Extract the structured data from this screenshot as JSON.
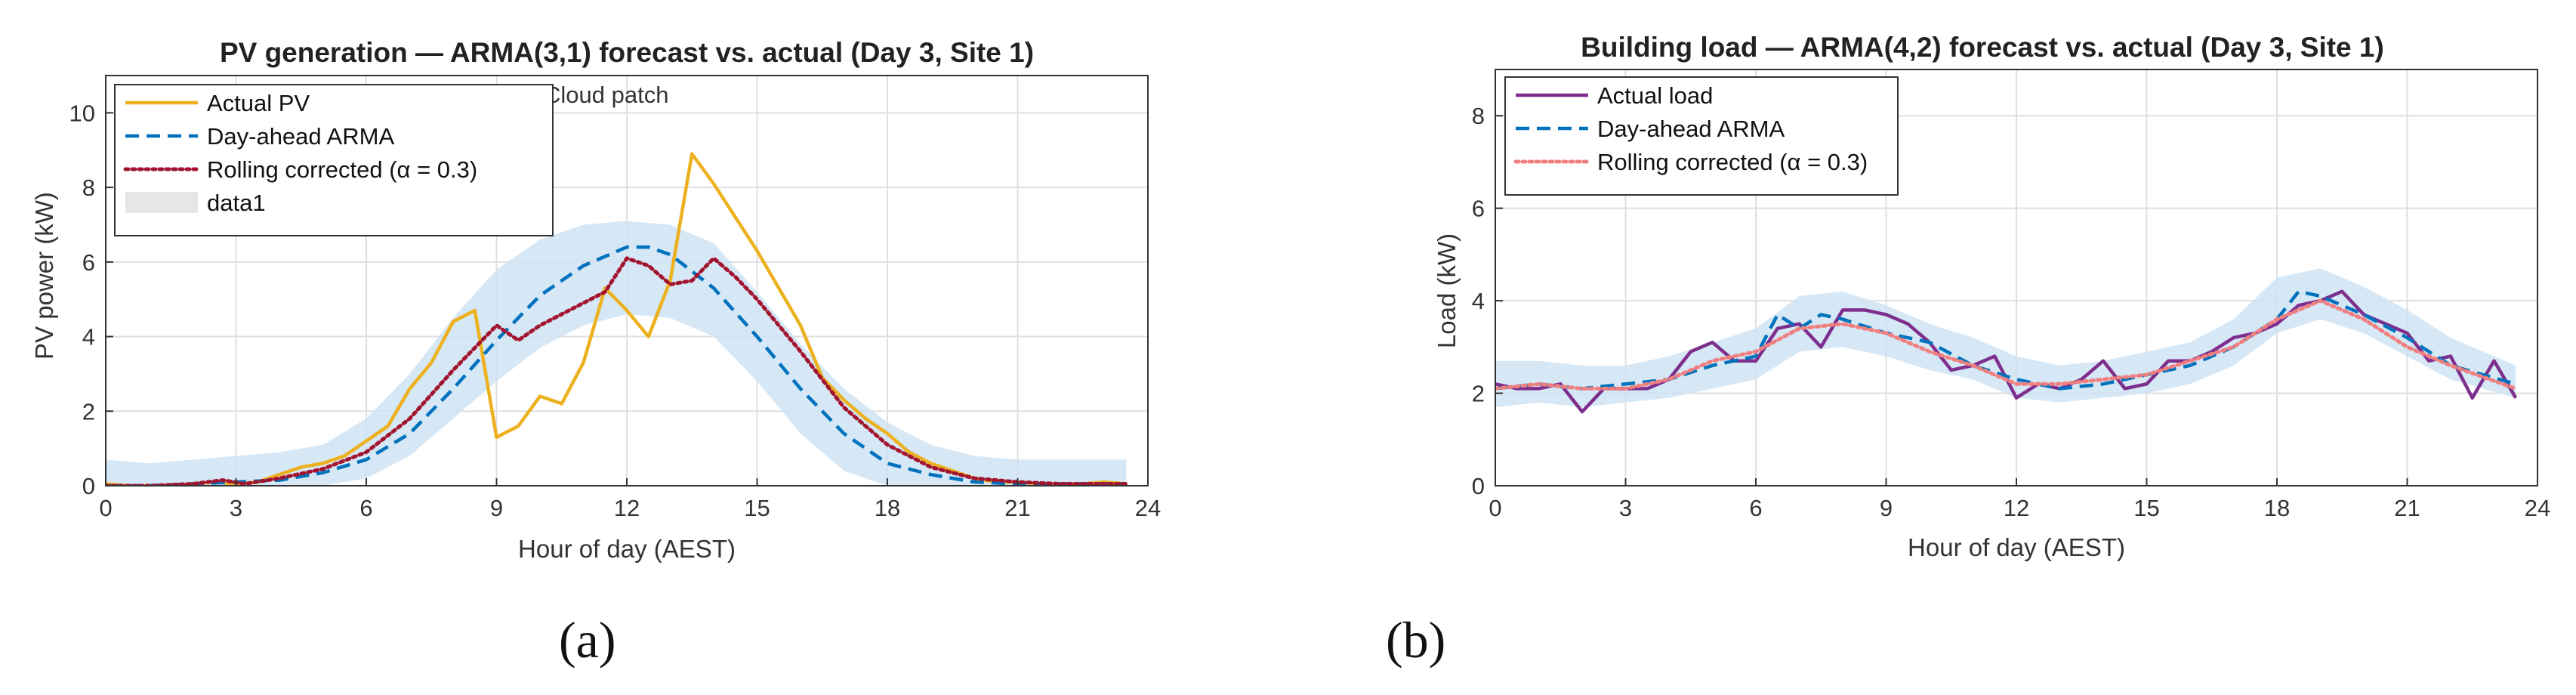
{
  "chart_data": [
    {
      "type": "line",
      "title": "PV generation — ARMA(3,1) forecast vs. actual (Day 3, Site 1)",
      "xlabel": "Hour of day (AEST)",
      "ylabel": "PV power (kW)",
      "xlim": [
        0,
        24
      ],
      "ylim": [
        0,
        11
      ],
      "xticks": [
        0,
        3,
        6,
        9,
        12,
        15,
        18,
        21,
        24
      ],
      "yticks": [
        0,
        2,
        4,
        6,
        8,
        10
      ],
      "grid": true,
      "legend_position": "top-left",
      "annotation": "Cloud patch",
      "band": {
        "name": "data1",
        "x": [
          0,
          1,
          2,
          3,
          4,
          5,
          6,
          7,
          8,
          9,
          10,
          11,
          12,
          13,
          14,
          15,
          16,
          17,
          18,
          19,
          20,
          21,
          22,
          23.5
        ],
        "lower": [
          0,
          0,
          0,
          0,
          0,
          0,
          0.2,
          0.8,
          1.8,
          2.8,
          3.7,
          4.3,
          4.6,
          4.5,
          4.0,
          2.8,
          1.4,
          0.4,
          0,
          0,
          0,
          0,
          0,
          0
        ],
        "upper": [
          0.7,
          0.6,
          0.7,
          0.8,
          0.9,
          1.1,
          1.8,
          3.0,
          4.5,
          5.8,
          6.6,
          7.0,
          7.1,
          7.0,
          6.5,
          5.2,
          3.8,
          2.6,
          1.7,
          1.1,
          0.8,
          0.7,
          0.7,
          0.7
        ]
      },
      "series": [
        {
          "name": "Actual PV",
          "color": "#edb120",
          "style": "solid",
          "x": [
            0,
            0.5,
            1,
            1.5,
            2,
            2.5,
            3,
            3.5,
            4,
            4.5,
            5,
            5.5,
            6,
            6.5,
            7,
            7.5,
            8,
            8.5,
            9,
            9.5,
            10,
            10.5,
            11,
            11.5,
            12,
            12.5,
            13,
            13.5,
            14,
            14.5,
            15,
            15.5,
            16,
            16.5,
            17,
            17.5,
            18,
            18.5,
            19,
            19.5,
            20,
            20.5,
            21,
            21.5,
            22,
            22.5,
            23,
            23.5
          ],
          "values": [
            0.05,
            0,
            0,
            0,
            0.05,
            0.1,
            0.05,
            0.1,
            0.3,
            0.5,
            0.6,
            0.8,
            1.2,
            1.6,
            2.6,
            3.3,
            4.4,
            4.7,
            1.3,
            1.6,
            2.4,
            2.2,
            3.3,
            5.3,
            4.7,
            4.0,
            5.5,
            8.9,
            8.1,
            7.2,
            6.3,
            5.3,
            4.3,
            2.9,
            2.3,
            1.8,
            1.4,
            0.9,
            0.6,
            0.4,
            0.2,
            0.1,
            0.1,
            0.05,
            0.05,
            0.05,
            0.1,
            0.05
          ]
        },
        {
          "name": "Day-ahead ARMA",
          "color": "#0072bd",
          "style": "dashed",
          "x": [
            0,
            1,
            2,
            3,
            4,
            5,
            6,
            7,
            8,
            9,
            10,
            11,
            12,
            12.5,
            13,
            14,
            15,
            16,
            17,
            18,
            19,
            20,
            21,
            22,
            23.5
          ],
          "values": [
            0,
            0,
            0.05,
            0.1,
            0.15,
            0.35,
            0.7,
            1.4,
            2.6,
            3.9,
            5.1,
            5.9,
            6.4,
            6.4,
            6.2,
            5.3,
            4.0,
            2.6,
            1.4,
            0.6,
            0.3,
            0.1,
            0.05,
            0.05,
            0.05
          ]
        },
        {
          "name": "Rolling corrected (α = 0.3)",
          "color": "#a2142f",
          "style": "dotted",
          "x": [
            0,
            1,
            2,
            2.7,
            3.2,
            4,
            5,
            6,
            7,
            8,
            9,
            9.5,
            10,
            11,
            11.5,
            12,
            12.5,
            13,
            13.5,
            14,
            14.5,
            15,
            16,
            17,
            18,
            19,
            20,
            21,
            22,
            23.5
          ],
          "values": [
            0,
            0,
            0.05,
            0.15,
            0.05,
            0.2,
            0.45,
            0.9,
            1.8,
            3.1,
            4.3,
            3.9,
            4.3,
            4.9,
            5.2,
            6.1,
            5.9,
            5.4,
            5.5,
            6.1,
            5.6,
            5.0,
            3.6,
            2.1,
            1.1,
            0.5,
            0.2,
            0.1,
            0.05,
            0.05
          ]
        }
      ]
    },
    {
      "type": "line",
      "title": "Building load — ARMA(4,2) forecast vs. actual (Day 3, Site 1)",
      "xlabel": "Hour of day (AEST)",
      "ylabel": "Load (kW)",
      "xlim": [
        0,
        24
      ],
      "ylim": [
        0,
        9
      ],
      "xticks": [
        0,
        3,
        6,
        9,
        12,
        15,
        18,
        21,
        24
      ],
      "yticks": [
        0,
        2,
        4,
        6,
        8
      ],
      "grid": true,
      "legend_position": "top-left",
      "band": {
        "x": [
          0,
          1,
          2,
          3,
          4,
          5,
          6,
          7,
          8,
          9,
          10,
          11,
          12,
          13,
          14,
          15,
          16,
          17,
          18,
          19,
          20,
          21,
          22,
          23.5
        ],
        "lower": [
          1.7,
          1.8,
          1.7,
          1.8,
          1.9,
          2.1,
          2.3,
          2.9,
          3.0,
          2.8,
          2.5,
          2.3,
          1.9,
          1.8,
          1.9,
          2.0,
          2.2,
          2.6,
          3.3,
          3.6,
          3.3,
          2.8,
          2.3,
          1.9
        ],
        "upper": [
          2.7,
          2.7,
          2.6,
          2.6,
          2.8,
          3.1,
          3.4,
          4.1,
          4.2,
          3.9,
          3.5,
          3.2,
          2.8,
          2.6,
          2.7,
          2.9,
          3.1,
          3.6,
          4.5,
          4.7,
          4.3,
          3.8,
          3.2,
          2.6
        ]
      },
      "series": [
        {
          "name": "Actual load",
          "color": "#7e2f8e",
          "style": "solid",
          "x": [
            0,
            0.5,
            1,
            1.5,
            2,
            2.5,
            3,
            3.5,
            4,
            4.5,
            5,
            5.5,
            6,
            6.5,
            7,
            7.5,
            8,
            8.5,
            9,
            9.5,
            10,
            10.5,
            11,
            11.5,
            12,
            12.5,
            13,
            13.5,
            14,
            14.5,
            15,
            15.5,
            16,
            16.5,
            17,
            17.5,
            18,
            18.5,
            19,
            19.5,
            20,
            20.5,
            21,
            21.5,
            22,
            22.5,
            23,
            23.5
          ],
          "values": [
            2.2,
            2.1,
            2.1,
            2.2,
            1.6,
            2.1,
            2.1,
            2.1,
            2.3,
            2.9,
            3.1,
            2.7,
            2.7,
            3.4,
            3.5,
            3.0,
            3.8,
            3.8,
            3.7,
            3.5,
            3.1,
            2.5,
            2.6,
            2.8,
            1.9,
            2.2,
            2.1,
            2.3,
            2.7,
            2.1,
            2.2,
            2.7,
            2.7,
            2.9,
            3.2,
            3.3,
            3.5,
            3.9,
            4.0,
            4.2,
            3.7,
            3.5,
            3.3,
            2.7,
            2.8,
            1.9,
            2.7,
            1.9
          ]
        },
        {
          "name": "Day-ahead ARMA",
          "color": "#0072bd",
          "style": "dashed",
          "x": [
            0,
            1,
            2,
            3,
            4,
            5,
            6,
            6.5,
            7,
            7.5,
            8,
            9,
            10,
            11,
            12,
            13,
            14,
            15,
            16,
            17,
            18,
            18.5,
            19,
            20,
            21,
            22,
            23.5
          ],
          "values": [
            2.1,
            2.2,
            2.1,
            2.2,
            2.3,
            2.6,
            2.8,
            3.7,
            3.4,
            3.7,
            3.6,
            3.3,
            3.1,
            2.6,
            2.3,
            2.1,
            2.2,
            2.4,
            2.6,
            3.0,
            3.6,
            4.2,
            4.1,
            3.7,
            3.2,
            2.6,
            2.2
          ]
        },
        {
          "name": "Rolling corrected (α = 0.3)",
          "color": "#f08080",
          "style": "dotted",
          "x": [
            0,
            1,
            2,
            3,
            4,
            5,
            6,
            7,
            8,
            9,
            10,
            11,
            12,
            13,
            14,
            15,
            16,
            17,
            18,
            19,
            20,
            21,
            22,
            23.5
          ],
          "values": [
            2.1,
            2.2,
            2.1,
            2.1,
            2.3,
            2.7,
            2.9,
            3.4,
            3.5,
            3.3,
            2.9,
            2.6,
            2.2,
            2.2,
            2.3,
            2.4,
            2.7,
            3.0,
            3.6,
            4.0,
            3.6,
            3.0,
            2.6,
            2.1
          ]
        }
      ]
    }
  ],
  "captions": {
    "a": "(a)",
    "b": "(b)"
  }
}
